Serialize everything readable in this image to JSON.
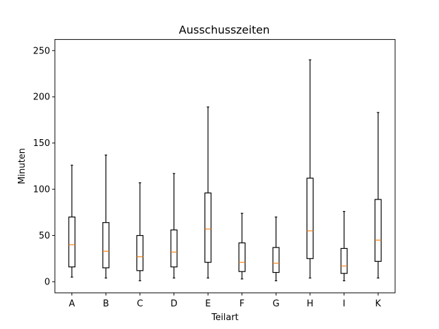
{
  "chart_data": {
    "type": "boxplot",
    "title": "Ausschusszeiten",
    "xlabel": "Teilart",
    "ylabel": "Minuten",
    "ylim": [
      -12,
      262
    ],
    "yticks": [
      0,
      50,
      100,
      150,
      200,
      250
    ],
    "grid": false,
    "categories": [
      "A",
      "B",
      "C",
      "D",
      "E",
      "F",
      "G",
      "H",
      "I",
      "K"
    ],
    "boxes": [
      {
        "whisker_low": 5,
        "q1": 16,
        "median": 40,
        "q3": 70,
        "whisker_high": 126
      },
      {
        "whisker_low": 4,
        "q1": 15,
        "median": 33,
        "q3": 64,
        "whisker_high": 137
      },
      {
        "whisker_low": 1,
        "q1": 12,
        "median": 27,
        "q3": 50,
        "whisker_high": 107
      },
      {
        "whisker_low": 4,
        "q1": 16,
        "median": 32,
        "q3": 56,
        "whisker_high": 117
      },
      {
        "whisker_low": 4,
        "q1": 21,
        "median": 57,
        "q3": 96,
        "whisker_high": 189
      },
      {
        "whisker_low": 3,
        "q1": 11,
        "median": 21,
        "q3": 42,
        "whisker_high": 74
      },
      {
        "whisker_low": 1,
        "q1": 10,
        "median": 20,
        "q3": 37,
        "whisker_high": 70
      },
      {
        "whisker_low": 4,
        "q1": 25,
        "median": 55,
        "q3": 112,
        "whisker_high": 240
      },
      {
        "whisker_low": 1,
        "q1": 9,
        "median": 17,
        "q3": 36,
        "whisker_high": 76
      },
      {
        "whisker_low": 4,
        "q1": 22,
        "median": 45,
        "q3": 89,
        "whisker_high": 183
      }
    ],
    "colors": {
      "box": "#000000",
      "median": "#ff7f0e",
      "axes": "#000000"
    }
  }
}
